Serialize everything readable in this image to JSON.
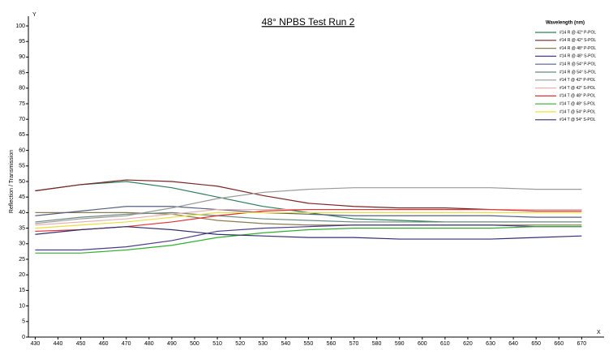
{
  "chart_data": {
    "type": "line",
    "title": "48° NPBS Test Run 2",
    "x_axis_label": "X",
    "y_axis_label": "Y",
    "y_title": "Reflection / Transmission",
    "legend_title": "Wavelength (nm)",
    "legend_position": "top-right",
    "grid": false,
    "x": [
      430,
      450,
      470,
      490,
      510,
      530,
      550,
      570,
      590,
      610,
      630,
      650,
      670
    ],
    "xlim": [
      427,
      677
    ],
    "xticks": [
      430,
      440,
      450,
      460,
      470,
      480,
      490,
      500,
      510,
      520,
      530,
      540,
      550,
      560,
      570,
      580,
      590,
      600,
      610,
      620,
      630,
      640,
      650,
      660,
      670
    ],
    "ylim": [
      0,
      100
    ],
    "yticks": [
      0,
      5,
      10,
      15,
      20,
      25,
      30,
      35,
      40,
      45,
      50,
      55,
      60,
      65,
      70,
      75,
      80,
      85,
      90,
      95,
      100
    ],
    "series": [
      {
        "name": "#14 R @ 42° P-POL",
        "color": "#2e7d5b",
        "values": [
          47,
          49,
          50,
          48,
          45,
          42,
          40,
          38,
          37.5,
          37,
          37,
          37,
          37
        ]
      },
      {
        "name": "#14 R @ 42° S-POL",
        "color": "#7a2424",
        "values": [
          47,
          49,
          50.5,
          50,
          48.5,
          45.5,
          43,
          42,
          41.5,
          41.5,
          41,
          41,
          41
        ]
      },
      {
        "name": "#14 R @ 48° P-POL",
        "color": "#8b7b50",
        "values": [
          40,
          40,
          40,
          39.5,
          37.5,
          36.5,
          36,
          36,
          36,
          36,
          36,
          36,
          36
        ]
      },
      {
        "name": "#14 R @ 48° S-POL",
        "color": "#4b3c8c",
        "values": [
          28,
          28,
          29,
          31,
          34,
          35,
          35.5,
          36,
          36,
          36,
          36,
          35.5,
          35.5
        ]
      },
      {
        "name": "#14 R @ 54° P-POL",
        "color": "#556080",
        "values": [
          39,
          40.5,
          42,
          42,
          41,
          40,
          39.5,
          39,
          39,
          39,
          39,
          38.5,
          38.5
        ]
      },
      {
        "name": "#14 R @ 54° S-POL",
        "color": "#6a8a80",
        "values": [
          37,
          38.5,
          39.5,
          40,
          39,
          38,
          37.5,
          37,
          37,
          37,
          37,
          37,
          37
        ]
      },
      {
        "name": "#14 T @ 42° P-POL",
        "color": "#999999",
        "values": [
          36.5,
          38,
          39,
          41.5,
          44.5,
          46.5,
          47.5,
          48,
          48,
          48,
          48,
          47.5,
          47.5
        ]
      },
      {
        "name": "#14 T @ 42° S-POL",
        "color": "#e8b0b0",
        "values": [
          36,
          37,
          38,
          39.5,
          41,
          41,
          41,
          41,
          41,
          41,
          41,
          41,
          41
        ]
      },
      {
        "name": "#14 T @ 48° P-POL",
        "color": "#e03030",
        "values": [
          34,
          34.5,
          35.5,
          37,
          39,
          40.5,
          41,
          41,
          41,
          41,
          41,
          40.5,
          40.5
        ]
      },
      {
        "name": "#14 T @ 48° S-POL",
        "color": "#30b030",
        "values": [
          27,
          27,
          28,
          29.5,
          32,
          33.5,
          34.5,
          35,
          35,
          35,
          35,
          35.5,
          35.5
        ]
      },
      {
        "name": "#14 T @ 54° P-POL",
        "color": "#e8e040",
        "values": [
          35,
          36,
          37,
          38.5,
          40,
          40,
          40,
          40,
          40,
          40,
          40,
          40,
          40
        ]
      },
      {
        "name": "#14 T @ 54° S-POL",
        "color": "#303070",
        "values": [
          33,
          34.5,
          35.5,
          34.5,
          33,
          32.5,
          32,
          32,
          31.5,
          31.5,
          31.5,
          32,
          32.5
        ]
      }
    ]
  }
}
